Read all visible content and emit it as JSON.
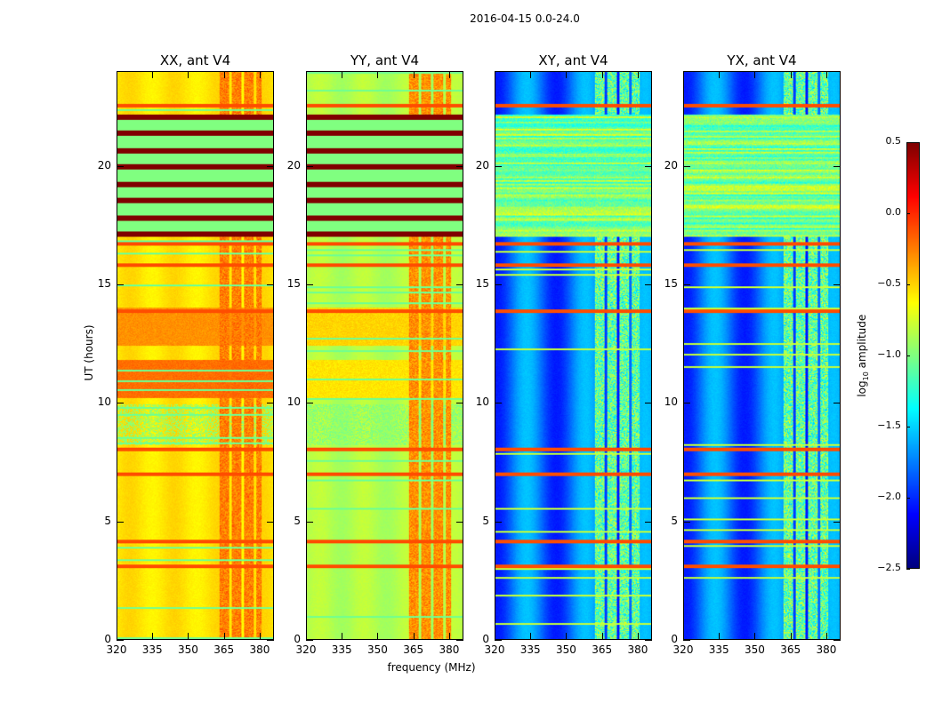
{
  "suptitle": "2016-04-15 0.0-24.0",
  "colorbar": {
    "label_prefix": "log",
    "label_sub": "10",
    "label_suffix": " amplitude",
    "ticks": [
      "0.5",
      "0.0",
      "−0.5",
      "−1.0",
      "−1.5",
      "−2.0",
      "−2.5"
    ],
    "range": [
      -2.5,
      0.5
    ],
    "colormap": "jet"
  },
  "chart_data": {
    "type": "heatmap",
    "title": "2016-04-15 0.0-24.0",
    "xlabel": "frequency (MHz)",
    "ylabel": "UT (hours)",
    "xlim": [
      320,
      386
    ],
    "ylim": [
      0,
      24
    ],
    "xticks": [
      "320",
      "335",
      "350",
      "365",
      "380"
    ],
    "xtick_values": [
      320,
      335,
      350,
      365,
      380
    ],
    "yticks": [
      "0",
      "5",
      "10",
      "15",
      "20"
    ],
    "ytick_values": [
      0,
      5,
      10,
      15,
      20
    ],
    "panels": [
      {
        "title": "XX, ant V4",
        "base": -0.55,
        "rfi_band": [
          362,
          381
        ],
        "rfi_value": -0.25,
        "bright_hours": [
          [
            10.2,
            11.8,
            -0.2
          ],
          [
            12.4,
            14.0,
            -0.3
          ]
        ],
        "low_hours": [
          [
            8.2,
            9.9,
            -0.95
          ]
        ],
        "stripe_region": [
          17.0,
          22.2
        ]
      },
      {
        "title": "YY, ant V4",
        "base": -0.85,
        "rfi_band": [
          362,
          381
        ],
        "rfi_value": -0.3,
        "bright_hours": [
          [
            10.2,
            11.8,
            -0.55
          ],
          [
            12.4,
            14.0,
            -0.5
          ]
        ],
        "low_hours": [
          [
            8.2,
            9.9,
            -1.0
          ]
        ],
        "stripe_region": [
          17.0,
          22.2
        ]
      },
      {
        "title": "XY, ant V4",
        "base": -1.8,
        "rfi_band": [
          361,
          381
        ],
        "rfi_value": -1.1,
        "bright_hours": [],
        "low_hours": [],
        "stripe_region": [
          17.0,
          22.2
        ],
        "stripe_value": -1.0
      },
      {
        "title": "YX, ant V4",
        "base": -1.8,
        "rfi_band": [
          361,
          381
        ],
        "rfi_value": -1.1,
        "bright_hours": [],
        "low_hours": [],
        "stripe_region": [
          17.0,
          22.2
        ],
        "stripe_value": -1.0
      }
    ],
    "flag_lines_hours": [
      3.1,
      4.1,
      7.0,
      8.0,
      13.9,
      15.8,
      16.7,
      22.6
    ],
    "colorbar_range": [
      -2.5,
      0.5
    ]
  }
}
